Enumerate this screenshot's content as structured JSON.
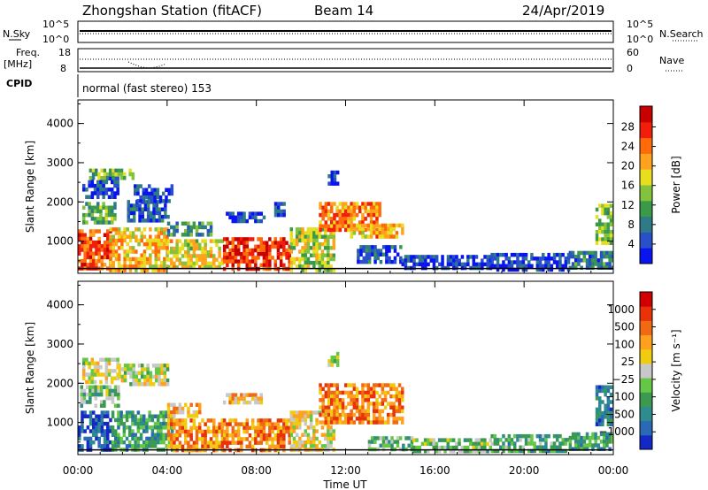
{
  "header": {
    "station_title": "Zhongshan Station (fitACF)",
    "beam": "Beam 14",
    "date": "24/Apr/2019"
  },
  "top_panels": {
    "nsky_label": "N.Sky",
    "nsearch_label": "N.Search",
    "nsky_ticks": [
      "10^5",
      "10^0"
    ],
    "nsearch_ticks": [
      "10^5",
      "10^0"
    ],
    "freq_label_1": "Freq.",
    "freq_label_2": "[MHz]",
    "freq_ticks": [
      "18",
      "8"
    ],
    "nave_label": "Nave",
    "nave_ticks": [
      "60",
      "0"
    ],
    "cpid_label": "CPID",
    "cpid_text": "normal (fast stereo) 153"
  },
  "chart_data": [
    {
      "type": "heatmap",
      "panel": "power",
      "xlabel": "Time UT",
      "ylabel": "Slant Range [km]",
      "x_ticks": [
        "00:00",
        "04:00",
        "08:00",
        "12:00",
        "16:00",
        "20:00",
        "00:00"
      ],
      "xlim_hours": [
        0,
        24
      ],
      "ylim_km": [
        180,
        4600
      ],
      "y_ticks": [
        1000,
        2000,
        3000,
        4000
      ],
      "colorbar": {
        "label": "Power [dB]",
        "ticks": [
          "4",
          "8",
          "12",
          "16",
          "20",
          "24",
          "28"
        ],
        "colors": [
          "#0a14f0",
          "#2850c8",
          "#2e7a86",
          "#3a9a4a",
          "#82c23c",
          "#e6de1e",
          "#ffa21e",
          "#ff6a0a",
          "#f01e0a",
          "#c80000"
        ]
      },
      "regions": [
        {
          "t0": 0.0,
          "t1": 1.4,
          "r0": 300,
          "r1": 1300,
          "lvl": 0.78
        },
        {
          "t0": 0.2,
          "t1": 1.6,
          "r0": 1450,
          "r1": 2000,
          "lvl": 0.38
        },
        {
          "t0": 0.2,
          "t1": 1.8,
          "r0": 2100,
          "r1": 2650,
          "lvl": 0.12
        },
        {
          "t0": 0.5,
          "t1": 2.5,
          "r0": 2650,
          "r1": 2850,
          "lvl": 0.42
        },
        {
          "t0": 1.4,
          "t1": 4.0,
          "r0": 300,
          "r1": 1350,
          "lvl": 0.62
        },
        {
          "t0": 2.2,
          "t1": 4.0,
          "r0": 1500,
          "r1": 2050,
          "lvl": 0.18
        },
        {
          "t0": 2.5,
          "t1": 4.2,
          "r0": 2050,
          "r1": 2450,
          "lvl": 0.12
        },
        {
          "t0": 4.0,
          "t1": 6.5,
          "r0": 300,
          "r1": 1050,
          "lvl": 0.55
        },
        {
          "t0": 4.0,
          "t1": 6.0,
          "r0": 1200,
          "r1": 1500,
          "lvl": 0.3
        },
        {
          "t0": 6.5,
          "t1": 8.3,
          "r0": 1500,
          "r1": 1750,
          "lvl": 0.12
        },
        {
          "t0": 6.5,
          "t1": 9.5,
          "r0": 300,
          "r1": 1100,
          "lvl": 0.85
        },
        {
          "t0": 9.5,
          "t1": 11.5,
          "r0": 300,
          "r1": 1350,
          "lvl": 0.5
        },
        {
          "t0": 8.8,
          "t1": 9.3,
          "r0": 1700,
          "r1": 2000,
          "lvl": 0.15
        },
        {
          "t0": 11.2,
          "t1": 11.7,
          "r0": 2500,
          "r1": 2800,
          "lvl": 0.12
        },
        {
          "t0": 10.8,
          "t1": 13.5,
          "r0": 1300,
          "r1": 2000,
          "lvl": 0.72
        },
        {
          "t0": 12.2,
          "t1": 14.5,
          "r0": 1100,
          "r1": 1450,
          "lvl": 0.65
        },
        {
          "t0": 12.5,
          "t1": 14.5,
          "r0": 500,
          "r1": 900,
          "lvl": 0.18
        },
        {
          "t0": 14.5,
          "t1": 18.5,
          "r0": 300,
          "r1": 650,
          "lvl": 0.12
        },
        {
          "t0": 18.5,
          "t1": 22.0,
          "r0": 300,
          "r1": 700,
          "lvl": 0.1
        },
        {
          "t0": 22.0,
          "t1": 24.0,
          "r0": 350,
          "r1": 750,
          "lvl": 0.25
        },
        {
          "t0": 23.2,
          "t1": 24.0,
          "r0": 950,
          "r1": 1950,
          "lvl": 0.45
        }
      ]
    },
    {
      "type": "heatmap",
      "panel": "velocity",
      "xlabel": "Time UT",
      "ylabel": "Slant Range [km]",
      "x_ticks": [
        "00:00",
        "04:00",
        "08:00",
        "12:00",
        "16:00",
        "20:00",
        "00:00"
      ],
      "xlim_hours": [
        0,
        24
      ],
      "ylim_km": [
        180,
        4600
      ],
      "y_ticks": [
        1000,
        2000,
        3000,
        4000
      ],
      "colorbar": {
        "label": "Velocity [m s⁻¹]",
        "ticks": [
          "1000",
          "500",
          "100",
          "25",
          "−25",
          "−100",
          "−500",
          "−1000"
        ],
        "colors": [
          "#1428c8",
          "#2a6ab4",
          "#2e8c8c",
          "#3c9a50",
          "#64c846",
          "#c8c8c8",
          "#f0cc10",
          "#ffa01e",
          "#f06a14",
          "#e8320a",
          "#d00000"
        ]
      },
      "regions": [
        {
          "t0": 0.0,
          "t1": 1.5,
          "r0": 300,
          "r1": 1300,
          "lvl": 0.1
        },
        {
          "t0": 0.1,
          "t1": 1.8,
          "r0": 1400,
          "r1": 1950,
          "lvl": 0.4
        },
        {
          "t0": 0.2,
          "t1": 1.8,
          "r0": 2000,
          "r1": 2650,
          "lvl": 0.52
        },
        {
          "t0": 1.8,
          "t1": 4.0,
          "r0": 2000,
          "r1": 2500,
          "lvl": 0.5
        },
        {
          "t0": 1.5,
          "t1": 4.2,
          "r0": 300,
          "r1": 1300,
          "lvl": 0.3
        },
        {
          "t0": 4.0,
          "t1": 6.5,
          "r0": 300,
          "r1": 1100,
          "lvl": 0.72
        },
        {
          "t0": 4.0,
          "t1": 5.5,
          "r0": 1200,
          "r1": 1500,
          "lvl": 0.62
        },
        {
          "t0": 6.5,
          "t1": 8.2,
          "r0": 1500,
          "r1": 1750,
          "lvl": 0.62
        },
        {
          "t0": 6.5,
          "t1": 9.5,
          "r0": 300,
          "r1": 1100,
          "lvl": 0.74
        },
        {
          "t0": 9.5,
          "t1": 11.5,
          "r0": 300,
          "r1": 1300,
          "lvl": 0.56
        },
        {
          "t0": 11.2,
          "t1": 11.7,
          "r0": 2450,
          "r1": 2800,
          "lvl": 0.5
        },
        {
          "t0": 10.8,
          "t1": 14.5,
          "r0": 1050,
          "r1": 2000,
          "lvl": 0.75
        },
        {
          "t0": 13.0,
          "t1": 15.0,
          "r0": 350,
          "r1": 650,
          "lvl": 0.36
        },
        {
          "t0": 15.0,
          "t1": 18.5,
          "r0": 300,
          "r1": 600,
          "lvl": 0.42
        },
        {
          "t0": 18.5,
          "t1": 22.0,
          "r0": 300,
          "r1": 700,
          "lvl": 0.32
        },
        {
          "t0": 22.0,
          "t1": 24.0,
          "r0": 350,
          "r1": 750,
          "lvl": 0.3
        },
        {
          "t0": 23.2,
          "t1": 24.0,
          "r0": 950,
          "r1": 1950,
          "lvl": 0.18
        }
      ]
    }
  ]
}
